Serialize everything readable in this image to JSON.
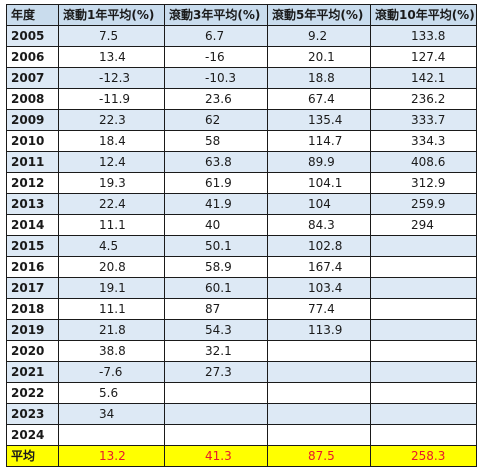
{
  "table": {
    "headers": [
      "年度",
      "滾動1年平均(%)",
      "滾動3年平均(%)",
      "滾動5年平均(%)",
      "滾動10年平均(%)"
    ],
    "rows": [
      {
        "year": "2005",
        "r1": "7.5",
        "r3": "6.7",
        "r5": "9.2",
        "r10": "133.8"
      },
      {
        "year": "2006",
        "r1": "13.4",
        "r3": "-16",
        "r5": "20.1",
        "r10": "127.4"
      },
      {
        "year": "2007",
        "r1": "-12.3",
        "r3": "-10.3",
        "r5": "18.8",
        "r10": "142.1"
      },
      {
        "year": "2008",
        "r1": "-11.9",
        "r3": "23.6",
        "r5": "67.4",
        "r10": "236.2"
      },
      {
        "year": "2009",
        "r1": "22.3",
        "r3": "62",
        "r5": "135.4",
        "r10": "333.7"
      },
      {
        "year": "2010",
        "r1": "18.4",
        "r3": "58",
        "r5": "114.7",
        "r10": "334.3"
      },
      {
        "year": "2011",
        "r1": "12.4",
        "r3": "63.8",
        "r5": "89.9",
        "r10": "408.6"
      },
      {
        "year": "2012",
        "r1": "19.3",
        "r3": "61.9",
        "r5": "104.1",
        "r10": "312.9"
      },
      {
        "year": "2013",
        "r1": "22.4",
        "r3": "41.9",
        "r5": "104",
        "r10": "259.9"
      },
      {
        "year": "2014",
        "r1": "11.1",
        "r3": "40",
        "r5": "84.3",
        "r10": "294"
      },
      {
        "year": "2015",
        "r1": "4.5",
        "r3": "50.1",
        "r5": "102.8",
        "r10": ""
      },
      {
        "year": "2016",
        "r1": "20.8",
        "r3": "58.9",
        "r5": "167.4",
        "r10": ""
      },
      {
        "year": "2017",
        "r1": "19.1",
        "r3": "60.1",
        "r5": "103.4",
        "r10": ""
      },
      {
        "year": "2018",
        "r1": "11.1",
        "r3": "87",
        "r5": "77.4",
        "r10": ""
      },
      {
        "year": "2019",
        "r1": "21.8",
        "r3": "54.3",
        "r5": "113.9",
        "r10": ""
      },
      {
        "year": "2020",
        "r1": "38.8",
        "r3": "32.1",
        "r5": "",
        "r10": ""
      },
      {
        "year": "2021",
        "r1": "-7.6",
        "r3": "27.3",
        "r5": "",
        "r10": ""
      },
      {
        "year": "2022",
        "r1": "5.6",
        "r3": "",
        "r5": "",
        "r10": ""
      },
      {
        "year": "2023",
        "r1": "34",
        "r3": "",
        "r5": "",
        "r10": ""
      },
      {
        "year": "2024",
        "r1": "",
        "r3": "",
        "r5": "",
        "r10": ""
      }
    ],
    "average": {
      "label": "平均",
      "r1": "13.2",
      "r3": "41.3",
      "r5": "87.5",
      "r10": "258.3"
    }
  },
  "colors": {
    "header_fill": "#c9dced",
    "band_fill": "#dde9f5",
    "average_fill": "#ffff00",
    "average_text": "#e8192c",
    "border": "#1a1a1a"
  }
}
